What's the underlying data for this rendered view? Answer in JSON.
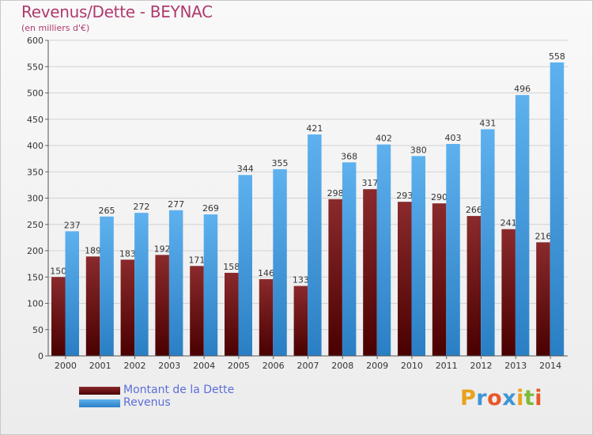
{
  "page": {
    "title": "Revenus/Dette - BEYNAC",
    "subtitle": "(en milliers d'€)"
  },
  "legend": {
    "items": [
      {
        "label": "Montant de la Dette",
        "color": "#6b0f10"
      },
      {
        "label": "Revenus",
        "color": "#4fa5e6"
      }
    ],
    "placement": "bottom-left"
  },
  "logo": {
    "text": "Proxiti",
    "colors": [
      "#e8a21e",
      "#3d95d6",
      "#e8572a",
      "#3d95d6",
      "#e8a21e",
      "#7cbb3a",
      "#e8572a"
    ]
  },
  "chart_data": {
    "type": "bar",
    "title": "Revenus/Dette - BEYNAC",
    "subtitle": "(en milliers d'€)",
    "categories": [
      "2000",
      "2001",
      "2002",
      "2003",
      "2004",
      "2005",
      "2006",
      "2007",
      "2008",
      "2009",
      "2010",
      "2011",
      "2012",
      "2013",
      "2014"
    ],
    "series": [
      {
        "name": "Montant de la Dette",
        "color": "#6b0f10",
        "values": [
          150,
          189,
          183,
          192,
          171,
          158,
          146,
          133,
          298,
          317,
          293,
          290,
          266,
          241,
          216
        ]
      },
      {
        "name": "Revenus",
        "color": "#4fa5e6",
        "values": [
          237,
          265,
          272,
          277,
          269,
          344,
          355,
          421,
          368,
          402,
          380,
          403,
          431,
          496,
          558
        ]
      }
    ],
    "ylim": [
      0,
      600
    ],
    "yticks": [
      0,
      50,
      100,
      150,
      200,
      250,
      300,
      350,
      400,
      450,
      500,
      550,
      600
    ],
    "grid": true,
    "show_data_labels": true
  }
}
